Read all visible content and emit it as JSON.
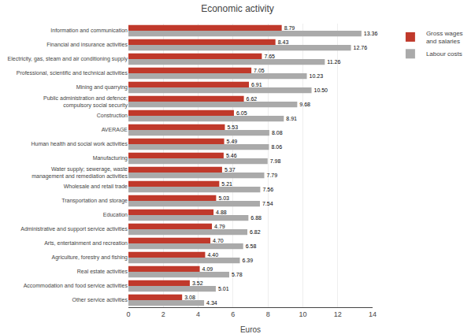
{
  "chart_data": {
    "type": "bar",
    "orientation": "horizontal",
    "title": "Economic activity",
    "xlabel": "Euros",
    "categories": [
      "Information and communication",
      "Financial and insurance activities",
      "Electricity, gas, steam and air conditioning supply",
      "Professional, scientific and technical activities",
      "Mining and quarrying",
      "Public administration and defence;\ncompulsory social security",
      "Construction",
      "AVERAGE",
      "Human health and social work activities",
      "Manufacturing",
      "Water supply; sewerage, waste\nmanagement and remediation activities",
      "Wholesale and retail trade",
      "Transportation and storage",
      "Education",
      "Administrative and support service activities",
      "Arts, entertainment and recreation",
      "Agriculture, forestry and fishing",
      "Real estate activities",
      "Accommodation and food service activities",
      "Other service activities"
    ],
    "series": [
      {
        "name": "Gross wages\nand salaries",
        "color": "#C0392B",
        "values": [
          8.79,
          8.43,
          7.65,
          7.05,
          6.91,
          6.62,
          6.05,
          5.53,
          5.49,
          5.46,
          5.37,
          5.21,
          5.03,
          4.88,
          4.79,
          4.7,
          4.4,
          4.09,
          3.52,
          3.08
        ],
        "value_labels": [
          "8.79",
          "8.43",
          "7.65",
          "7.05",
          "6.91",
          "6.62",
          "6.05",
          "5.53",
          "5.49",
          "5.46",
          "5.37",
          "5.21",
          "5.03",
          "4.88",
          "4.79",
          "4.70",
          "4.40",
          "4.09",
          "3.52",
          "3.08"
        ]
      },
      {
        "name": "Labour costs",
        "color": "#AAAAAA",
        "values": [
          13.36,
          12.76,
          11.26,
          10.23,
          10.5,
          9.68,
          8.91,
          8.08,
          8.06,
          7.98,
          7.79,
          7.56,
          7.54,
          6.88,
          6.82,
          6.58,
          6.39,
          5.78,
          5.01,
          4.34
        ],
        "value_labels": [
          "13.36",
          "12.76",
          "11.26",
          "10.23",
          "10.50",
          "9.68",
          "8.91",
          "8.08",
          "8.06",
          "7.98",
          "7.79",
          "7.56",
          "7.54",
          "6.88",
          "6.82",
          "6.58",
          "6.39",
          "5.78",
          "5.01",
          "4.34"
        ]
      }
    ],
    "xlim": [
      0,
      14
    ],
    "xticks": [
      0,
      2,
      4,
      6,
      8,
      10,
      12,
      14
    ],
    "grid": true,
    "legend": "upper right",
    "data_labels": true
  }
}
